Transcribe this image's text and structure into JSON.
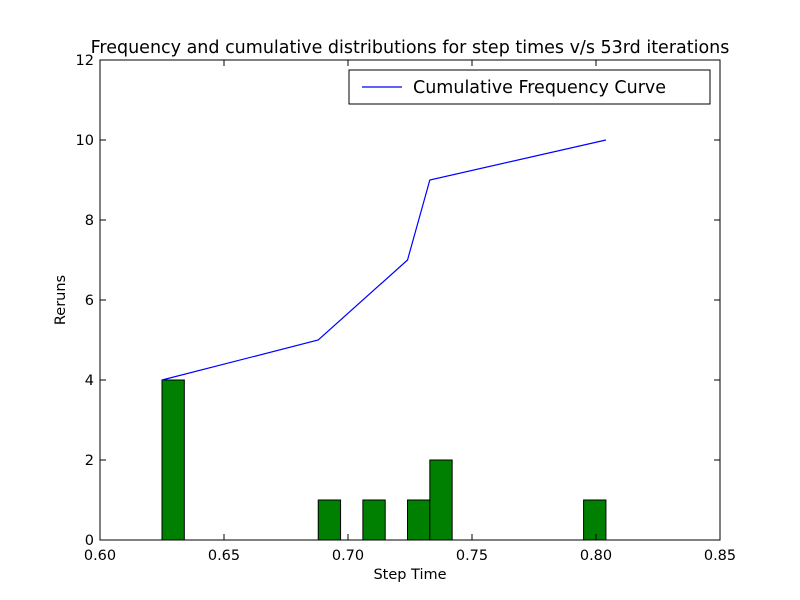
{
  "chart_data": {
    "type": "bar",
    "title": "Frequency and cumulative distributions for step times v/s 53rd iterations",
    "xlabel": "Step Time",
    "ylabel": "Reruns",
    "xlim": [
      0.6,
      0.85
    ],
    "ylim": [
      0,
      12
    ],
    "xticks": [
      "0.60",
      "0.65",
      "0.70",
      "0.75",
      "0.80",
      "0.85"
    ],
    "yticks": [
      "0",
      "2",
      "4",
      "6",
      "8",
      "10",
      "12"
    ],
    "grid": false,
    "legend_position": "top-right",
    "histogram": {
      "color": "#008000",
      "bins": [
        {
          "x0": 0.625,
          "x1": 0.634,
          "count": 4
        },
        {
          "x0": 0.688,
          "x1": 0.697,
          "count": 1
        },
        {
          "x0": 0.706,
          "x1": 0.715,
          "count": 1
        },
        {
          "x0": 0.724,
          "x1": 0.733,
          "count": 1
        },
        {
          "x0": 0.733,
          "x1": 0.742,
          "count": 2
        },
        {
          "x0": 0.795,
          "x1": 0.804,
          "count": 1
        }
      ]
    },
    "series": [
      {
        "name": "Cumulative Frequency Curve",
        "type": "line",
        "color": "#0000ff",
        "x": [
          0.625,
          0.688,
          0.724,
          0.733,
          0.804
        ],
        "y": [
          4,
          5,
          7,
          9,
          10
        ]
      }
    ]
  }
}
